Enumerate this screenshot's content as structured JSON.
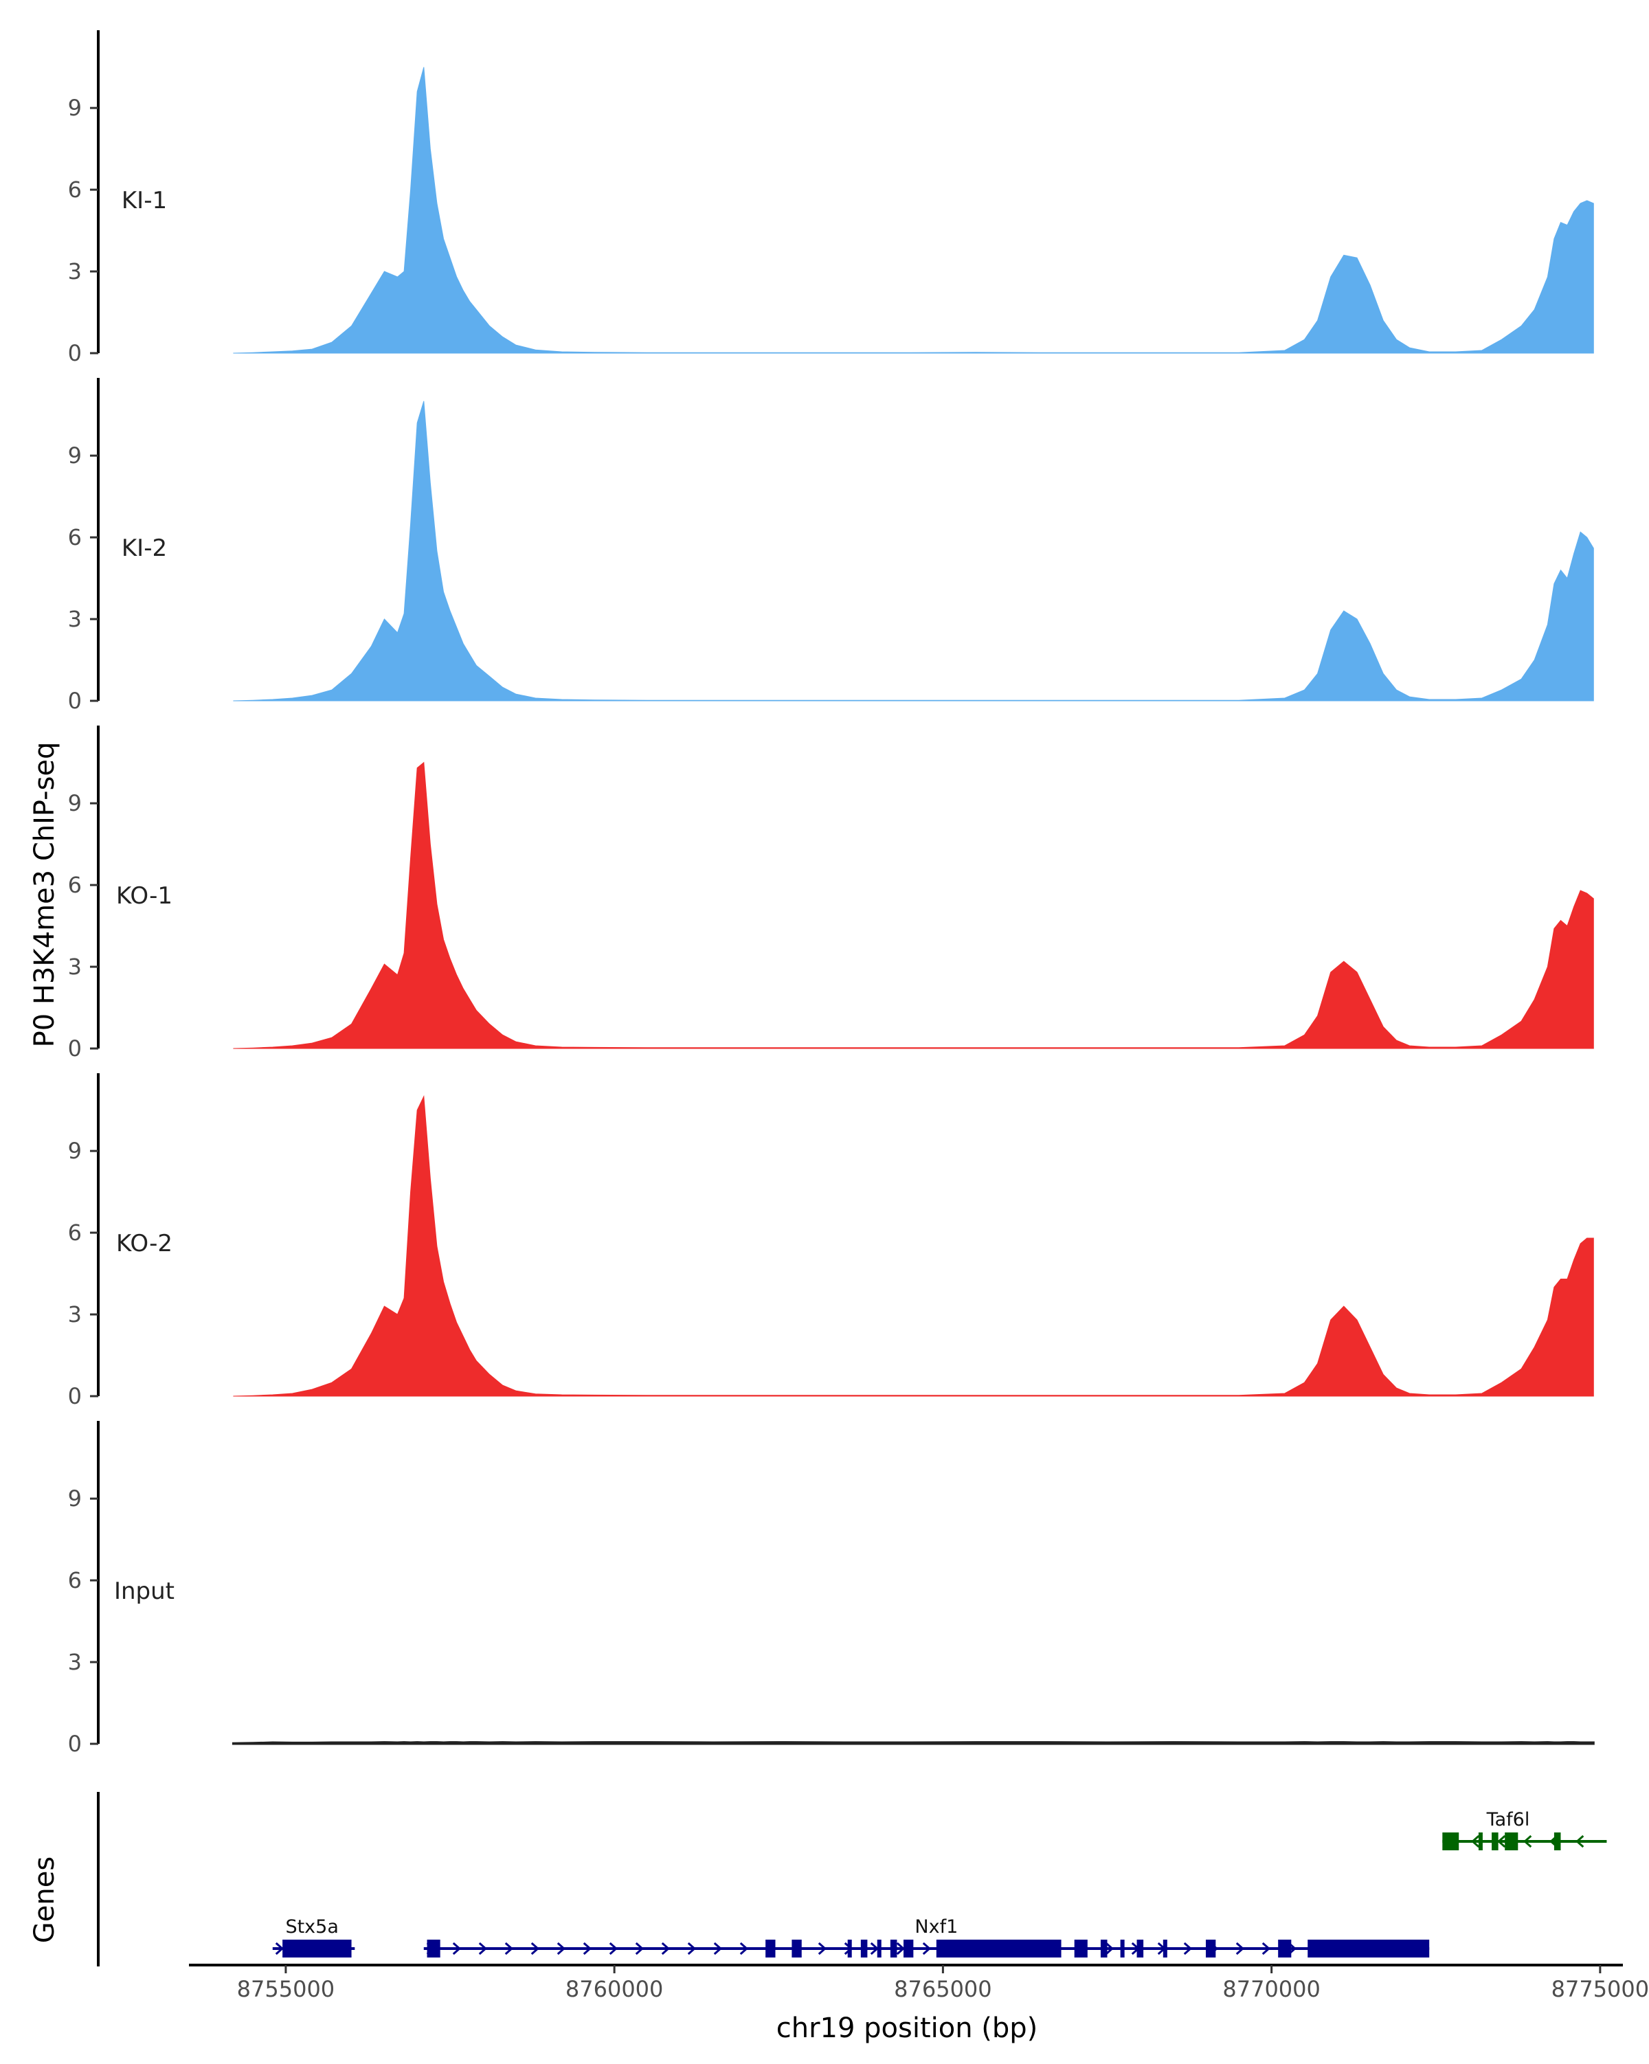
{
  "chart_data": {
    "type": "area",
    "title": "",
    "ylabel": "P0 H3K4me3 ChIP-seq",
    "xlabel": "chr19 position (bp)",
    "genes_label": "Genes",
    "xlim": [
      8753600,
      8775200
    ],
    "ylim": [
      0,
      11.5
    ],
    "x_ticks": [
      8755000,
      8760000,
      8765000,
      8770000,
      8775000
    ],
    "x_tick_labels": [
      "8755000",
      "8760000",
      "8765000",
      "8770000",
      "8775000"
    ],
    "y_ticks": [
      0,
      3,
      6,
      9
    ],
    "y_tick_labels": [
      "0",
      "3",
      "6",
      "9"
    ],
    "colors": {
      "KI": "#5faeee",
      "KO": "#ee2c2c",
      "Input": "#222222",
      "gene_plus": "#00008b",
      "gene_minus": "#006400"
    },
    "x": [
      8754200,
      8754500,
      8754800,
      8755100,
      8755400,
      8755700,
      8756000,
      8756300,
      8756500,
      8756700,
      8756800,
      8756900,
      8757000,
      8757100,
      8757200,
      8757300,
      8757400,
      8757500,
      8757600,
      8757700,
      8757800,
      8757900,
      8758100,
      8758300,
      8758500,
      8758800,
      8759200,
      8759700,
      8760500,
      8761500,
      8762500,
      8763500,
      8764500,
      8765500,
      8766500,
      8767500,
      8768500,
      8769500,
      8770200,
      8770500,
      8770700,
      8770900,
      8771100,
      8771300,
      8771500,
      8771700,
      8771900,
      8772100,
      8772400,
      8772800,
      8773200,
      8773500,
      8773800,
      8774000,
      8774200,
      8774300,
      8774400,
      8774500,
      8774600,
      8774700,
      8774800,
      8774900
    ],
    "series": [
      {
        "name": "KI-1",
        "group": "KI",
        "values": [
          0,
          0.02,
          0.05,
          0.08,
          0.15,
          0.4,
          1.0,
          2.2,
          3.0,
          2.8,
          3.0,
          6.0,
          9.6,
          10.5,
          7.5,
          5.5,
          4.2,
          3.5,
          2.8,
          2.3,
          1.9,
          1.6,
          1.0,
          0.6,
          0.3,
          0.12,
          0.05,
          0.03,
          0.02,
          0.02,
          0.02,
          0.02,
          0.02,
          0.03,
          0.02,
          0.02,
          0.02,
          0.02,
          0.1,
          0.5,
          1.2,
          2.8,
          3.6,
          3.5,
          2.5,
          1.2,
          0.5,
          0.2,
          0.05,
          0.05,
          0.1,
          0.5,
          1.0,
          1.6,
          2.8,
          4.2,
          4.8,
          4.7,
          5.2,
          5.5,
          5.6,
          5.5
        ]
      },
      {
        "name": "KI-2",
        "group": "KI",
        "values": [
          0,
          0.02,
          0.05,
          0.1,
          0.2,
          0.4,
          1.0,
          2.0,
          3.0,
          2.5,
          3.2,
          6.5,
          10.2,
          11.0,
          8.0,
          5.5,
          4.0,
          3.3,
          2.7,
          2.1,
          1.7,
          1.3,
          0.9,
          0.5,
          0.25,
          0.1,
          0.05,
          0.03,
          0.02,
          0.02,
          0.02,
          0.02,
          0.02,
          0.02,
          0.02,
          0.02,
          0.02,
          0.02,
          0.1,
          0.4,
          1.0,
          2.6,
          3.3,
          3.0,
          2.1,
          1.0,
          0.4,
          0.15,
          0.05,
          0.05,
          0.1,
          0.4,
          0.8,
          1.5,
          2.8,
          4.3,
          4.8,
          4.5,
          5.4,
          6.2,
          6.0,
          5.6
        ]
      },
      {
        "name": "KO-1",
        "group": "KO",
        "values": [
          0,
          0.02,
          0.05,
          0.1,
          0.2,
          0.4,
          0.9,
          2.2,
          3.1,
          2.7,
          3.5,
          7.0,
          10.3,
          10.5,
          7.5,
          5.3,
          4.0,
          3.3,
          2.7,
          2.2,
          1.8,
          1.4,
          0.9,
          0.5,
          0.25,
          0.1,
          0.05,
          0.04,
          0.03,
          0.03,
          0.03,
          0.03,
          0.03,
          0.03,
          0.03,
          0.03,
          0.03,
          0.03,
          0.1,
          0.5,
          1.2,
          2.8,
          3.2,
          2.8,
          1.8,
          0.8,
          0.3,
          0.1,
          0.05,
          0.05,
          0.1,
          0.5,
          1.0,
          1.8,
          3.0,
          4.4,
          4.7,
          4.5,
          5.2,
          5.8,
          5.7,
          5.5
        ]
      },
      {
        "name": "KO-2",
        "group": "KO",
        "values": [
          0,
          0.02,
          0.05,
          0.1,
          0.25,
          0.5,
          1.0,
          2.3,
          3.3,
          3.0,
          3.6,
          7.5,
          10.5,
          11.0,
          8.0,
          5.5,
          4.2,
          3.4,
          2.7,
          2.2,
          1.7,
          1.3,
          0.8,
          0.4,
          0.2,
          0.08,
          0.05,
          0.04,
          0.03,
          0.03,
          0.03,
          0.03,
          0.03,
          0.03,
          0.03,
          0.03,
          0.03,
          0.03,
          0.1,
          0.5,
          1.2,
          2.8,
          3.3,
          2.8,
          1.8,
          0.8,
          0.3,
          0.1,
          0.05,
          0.05,
          0.1,
          0.5,
          1.0,
          1.8,
          2.8,
          4.0,
          4.3,
          4.3,
          5.0,
          5.6,
          5.8,
          5.8
        ]
      },
      {
        "name": "Input",
        "group": "Input",
        "values": [
          0.02,
          0.03,
          0.05,
          0.04,
          0.04,
          0.05,
          0.05,
          0.05,
          0.06,
          0.05,
          0.06,
          0.05,
          0.06,
          0.05,
          0.06,
          0.06,
          0.05,
          0.06,
          0.06,
          0.05,
          0.06,
          0.06,
          0.05,
          0.06,
          0.05,
          0.06,
          0.05,
          0.06,
          0.06,
          0.05,
          0.06,
          0.05,
          0.05,
          0.06,
          0.06,
          0.05,
          0.06,
          0.05,
          0.05,
          0.06,
          0.05,
          0.06,
          0.06,
          0.05,
          0.05,
          0.06,
          0.05,
          0.05,
          0.06,
          0.06,
          0.05,
          0.05,
          0.06,
          0.05,
          0.06,
          0.05,
          0.05,
          0.06,
          0.06,
          0.05,
          0.05,
          0.05
        ]
      }
    ],
    "genes": [
      {
        "name": "Stx5a",
        "strand": "+",
        "track": 0,
        "start": 8754800,
        "end": 8756050,
        "exons": [
          [
            8754950,
            8756000
          ]
        ]
      },
      {
        "name": "Nxf1",
        "strand": "+",
        "track": 0,
        "start": 8757100,
        "end": 8772400,
        "exons": [
          [
            8757150,
            8757350
          ],
          [
            8762300,
            8762450
          ],
          [
            8762700,
            8762850
          ],
          [
            8763550,
            8763600
          ],
          [
            8763750,
            8763850
          ],
          [
            8764000,
            8764050
          ],
          [
            8764200,
            8764300
          ],
          [
            8764400,
            8764550
          ],
          [
            8764900,
            8766800
          ],
          [
            8767000,
            8767200
          ],
          [
            8767400,
            8767500
          ],
          [
            8767700,
            8767750
          ],
          [
            8767950,
            8768050
          ],
          [
            8768350,
            8768400
          ],
          [
            8769000,
            8769150
          ],
          [
            8770100,
            8770300
          ],
          [
            8770550,
            8772400
          ]
        ]
      },
      {
        "name": "Taf6l",
        "strand": "-",
        "track": 1,
        "start": 8772600,
        "end": 8775100,
        "exons": [
          [
            8772600,
            8772850
          ],
          [
            8773150,
            8773200
          ],
          [
            8773350,
            8773450
          ],
          [
            8773550,
            8773750
          ],
          [
            8774300,
            8774400
          ]
        ]
      }
    ]
  }
}
